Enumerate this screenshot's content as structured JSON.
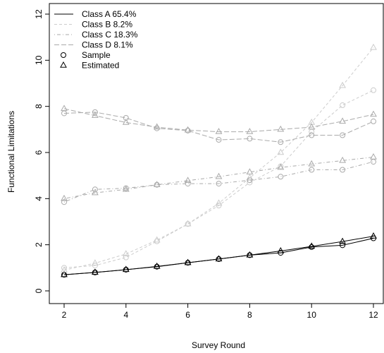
{
  "chart_data": {
    "type": "line",
    "title": "",
    "xlabel": "Survey Round",
    "ylabel": "Functional Limitations",
    "x": [
      2,
      3,
      4,
      5,
      6,
      7,
      8,
      9,
      10,
      11,
      12
    ],
    "xlim": [
      2,
      12
    ],
    "ylim": [
      0,
      12
    ],
    "xticks": [
      2,
      4,
      6,
      8,
      10,
      12
    ],
    "yticks": [
      0,
      2,
      4,
      6,
      8,
      10,
      12
    ],
    "grid": false,
    "legend_position": "top-left",
    "series": [
      {
        "name": "Class A 65.4%",
        "color": "#000000",
        "dash": "solid",
        "sample": [
          0.7,
          0.8,
          0.92,
          1.05,
          1.22,
          1.38,
          1.55,
          1.65,
          1.9,
          1.98,
          2.28
        ],
        "estimated": [
          0.7,
          0.8,
          0.92,
          1.06,
          1.22,
          1.38,
          1.55,
          1.73,
          1.93,
          2.14,
          2.37
        ]
      },
      {
        "name": "Class B 8.2%",
        "color": "#cccccc",
        "dash": "dashed",
        "sample": [
          1.0,
          1.1,
          1.45,
          2.15,
          2.9,
          3.7,
          4.7,
          5.4,
          6.9,
          8.05,
          8.7
        ],
        "estimated": [
          0.9,
          1.2,
          1.6,
          2.2,
          2.9,
          3.8,
          4.9,
          6.0,
          7.3,
          8.9,
          10.55
        ]
      },
      {
        "name": "Class C 18.3%",
        "color": "#aaaaaa",
        "dash": "dotdash",
        "sample": [
          3.85,
          4.4,
          4.45,
          4.6,
          4.65,
          4.65,
          4.8,
          4.95,
          5.25,
          5.25,
          5.6
        ],
        "estimated": [
          4.0,
          4.25,
          4.4,
          4.6,
          4.78,
          4.95,
          5.15,
          5.35,
          5.5,
          5.65,
          5.8
        ]
      },
      {
        "name": "Class D 8.1%",
        "color": "#aaaaaa",
        "dash": "longdash",
        "sample": [
          7.7,
          7.75,
          7.5,
          7.05,
          6.95,
          6.55,
          6.6,
          6.45,
          6.75,
          6.75,
          7.35
        ],
        "estimated": [
          7.9,
          7.6,
          7.3,
          7.1,
          6.97,
          6.9,
          6.9,
          7.0,
          7.1,
          7.35,
          7.65
        ]
      }
    ],
    "legend": {
      "sample_label": "Sample",
      "estimated_label": "Estimated"
    }
  }
}
